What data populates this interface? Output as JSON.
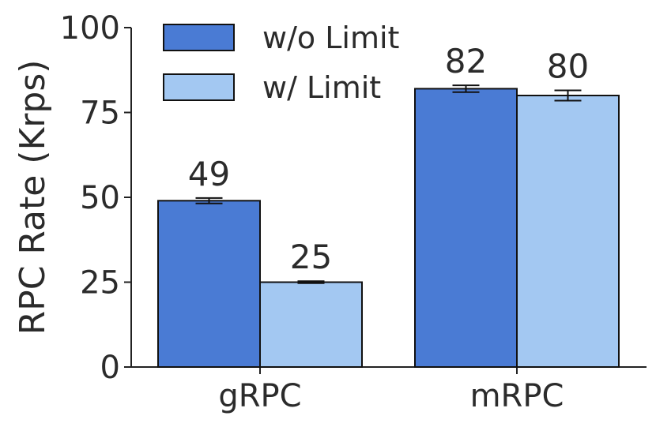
{
  "chart_data": {
    "type": "bar",
    "categories": [
      "gRPC",
      "mRPC"
    ],
    "series": [
      {
        "name": "w/o Limit",
        "color": "#4a7bd4",
        "values": [
          49,
          82
        ],
        "errors": [
          0.8,
          1.0
        ],
        "labels": [
          "49",
          "82"
        ]
      },
      {
        "name": "w/ Limit",
        "color": "#a3c8f2",
        "values": [
          25,
          80
        ],
        "errors": [
          0.3,
          1.5
        ],
        "labels": [
          "25",
          "80"
        ]
      }
    ],
    "title": "",
    "xlabel": "",
    "ylabel": "RPC Rate (Krps)",
    "ylim": [
      0,
      100
    ],
    "yticks": [
      "0",
      "25",
      "50",
      "75",
      "100"
    ],
    "legend_position": "top-left",
    "grid": false
  }
}
